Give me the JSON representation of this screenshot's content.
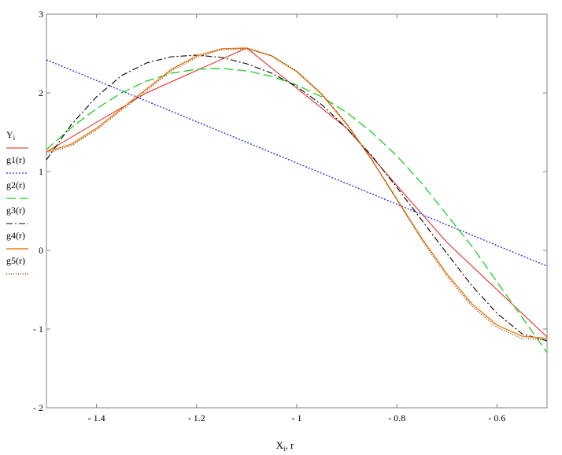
{
  "chart_data": {
    "type": "line",
    "xlim": [
      -1.5,
      -0.5
    ],
    "ylim": [
      -2,
      3
    ],
    "x_ticks": [
      -1.4,
      -1.2,
      -1,
      -0.8,
      -0.6
    ],
    "x_tick_labels": [
      "- 1.4",
      "- 1.2",
      "- 1",
      "- 0.8",
      "- 0.6"
    ],
    "y_ticks": [
      -2,
      -1,
      0,
      1,
      2,
      3
    ],
    "y_tick_labels": [
      "- 2",
      "- 1",
      "0",
      "1",
      "2",
      "3"
    ],
    "xlabel": {
      "main": "X",
      "sub": "i",
      "tail": ", r"
    },
    "grid": false,
    "legend_position": "left",
    "series": [
      {
        "name": "Y",
        "name_sub": "i",
        "color": "#e0201b",
        "dash": "",
        "width": 1,
        "x": [
          -1.5,
          -1.3,
          -1.1,
          -0.9,
          -0.7,
          -0.5
        ],
        "y": [
          1.25,
          2.0,
          2.57,
          1.55,
          0.1,
          -1.1
        ]
      },
      {
        "name": "g1(r)",
        "color": "#1f2bd6",
        "dash": "2,2",
        "width": 1.3,
        "x": [
          -1.5,
          -0.5
        ],
        "y": [
          2.42,
          -0.2
        ]
      },
      {
        "name": "g2(r)",
        "color": "#22cc22",
        "dash": "12,5",
        "width": 1.3,
        "x": [
          -1.5,
          -1.45,
          -1.4,
          -1.35,
          -1.3,
          -1.25,
          -1.2,
          -1.15,
          -1.1,
          -1.05,
          -1.0,
          -0.95,
          -0.9,
          -0.85,
          -0.8,
          -0.75,
          -0.7,
          -0.65,
          -0.6,
          -0.55,
          -0.5
        ],
        "y": [
          1.28,
          1.56,
          1.8,
          2.0,
          2.15,
          2.25,
          2.3,
          2.31,
          2.28,
          2.21,
          2.1,
          1.95,
          1.75,
          1.5,
          1.2,
          0.85,
          0.45,
          0.05,
          -0.4,
          -0.85,
          -1.3
        ]
      },
      {
        "name": "g3(r)",
        "color": "#000000",
        "dash": "8,3,2,3",
        "width": 1.1,
        "x": [
          -1.5,
          -1.45,
          -1.4,
          -1.35,
          -1.3,
          -1.25,
          -1.2,
          -1.15,
          -1.1,
          -1.05,
          -1.0,
          -0.95,
          -0.9,
          -0.85,
          -0.8,
          -0.75,
          -0.7,
          -0.65,
          -0.6,
          -0.55,
          -0.5
        ],
        "y": [
          1.15,
          1.6,
          1.95,
          2.22,
          2.38,
          2.46,
          2.48,
          2.45,
          2.37,
          2.25,
          2.08,
          1.85,
          1.55,
          1.2,
          0.8,
          0.38,
          -0.04,
          -0.45,
          -0.8,
          -1.06,
          -1.15
        ]
      },
      {
        "name": "g4(r)",
        "color": "#f07a10",
        "dash": "",
        "width": 1.4,
        "x": [
          -1.5,
          -1.45,
          -1.4,
          -1.35,
          -1.3,
          -1.25,
          -1.2,
          -1.15,
          -1.1,
          -1.05,
          -1.0,
          -0.95,
          -0.9,
          -0.85,
          -0.8,
          -0.75,
          -0.7,
          -0.65,
          -0.6,
          -0.55,
          -0.5
        ],
        "y": [
          1.25,
          1.35,
          1.55,
          1.8,
          2.05,
          2.3,
          2.47,
          2.56,
          2.57,
          2.47,
          2.27,
          1.98,
          1.6,
          1.15,
          0.65,
          0.15,
          -0.3,
          -0.68,
          -0.95,
          -1.09,
          -1.12
        ]
      },
      {
        "name": "g5(r)",
        "color": "#553300",
        "dash": "1,2",
        "width": 1.2,
        "x": [
          -1.5,
          -1.45,
          -1.4,
          -1.35,
          -1.3,
          -1.25,
          -1.2,
          -1.15,
          -1.1,
          -1.05,
          -1.0,
          -0.95,
          -0.9,
          -0.85,
          -0.8,
          -0.75,
          -0.7,
          -0.65,
          -0.6,
          -0.55,
          -0.5
        ],
        "y": [
          1.23,
          1.33,
          1.53,
          1.78,
          2.03,
          2.28,
          2.45,
          2.55,
          2.56,
          2.47,
          2.28,
          1.99,
          1.61,
          1.15,
          0.64,
          0.13,
          -0.33,
          -0.71,
          -0.98,
          -1.12,
          -1.14
        ]
      }
    ]
  }
}
